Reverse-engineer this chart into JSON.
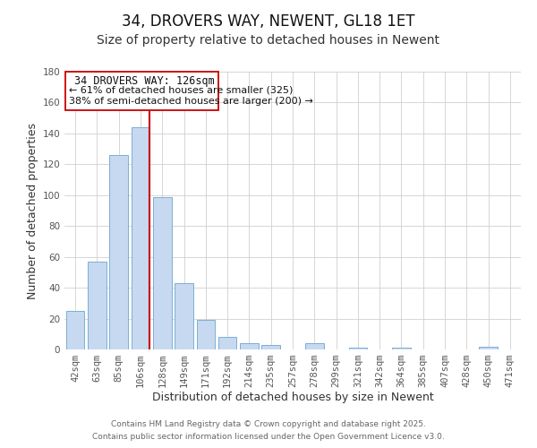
{
  "title": "34, DROVERS WAY, NEWENT, GL18 1ET",
  "subtitle": "Size of property relative to detached houses in Newent",
  "xlabel": "Distribution of detached houses by size in Newent",
  "ylabel": "Number of detached properties",
  "categories": [
    "42sqm",
    "63sqm",
    "85sqm",
    "106sqm",
    "128sqm",
    "149sqm",
    "171sqm",
    "192sqm",
    "214sqm",
    "235sqm",
    "257sqm",
    "278sqm",
    "299sqm",
    "321sqm",
    "342sqm",
    "364sqm",
    "385sqm",
    "407sqm",
    "428sqm",
    "450sqm",
    "471sqm"
  ],
  "values": [
    25,
    57,
    126,
    144,
    99,
    43,
    19,
    8,
    4,
    3,
    0,
    4,
    0,
    1,
    0,
    1,
    0,
    0,
    0,
    2,
    0
  ],
  "bar_color": "#c6d9f0",
  "bar_edge_color": "#7bafd4",
  "vline_color": "#cc0000",
  "ylim": [
    0,
    180
  ],
  "yticks": [
    0,
    20,
    40,
    60,
    80,
    100,
    120,
    140,
    160,
    180
  ],
  "annotation_box_text_line1": "34 DROVERS WAY: 126sqm",
  "annotation_box_text_line2": "← 61% of detached houses are smaller (325)",
  "annotation_box_text_line3": "38% of semi-detached houses are larger (200) →",
  "footer_line1": "Contains HM Land Registry data © Crown copyright and database right 2025.",
  "footer_line2": "Contains public sector information licensed under the Open Government Licence v3.0.",
  "title_fontsize": 12,
  "subtitle_fontsize": 10,
  "axis_label_fontsize": 9,
  "tick_fontsize": 7.5,
  "annotation_fontsize": 8.5,
  "footer_fontsize": 6.5
}
